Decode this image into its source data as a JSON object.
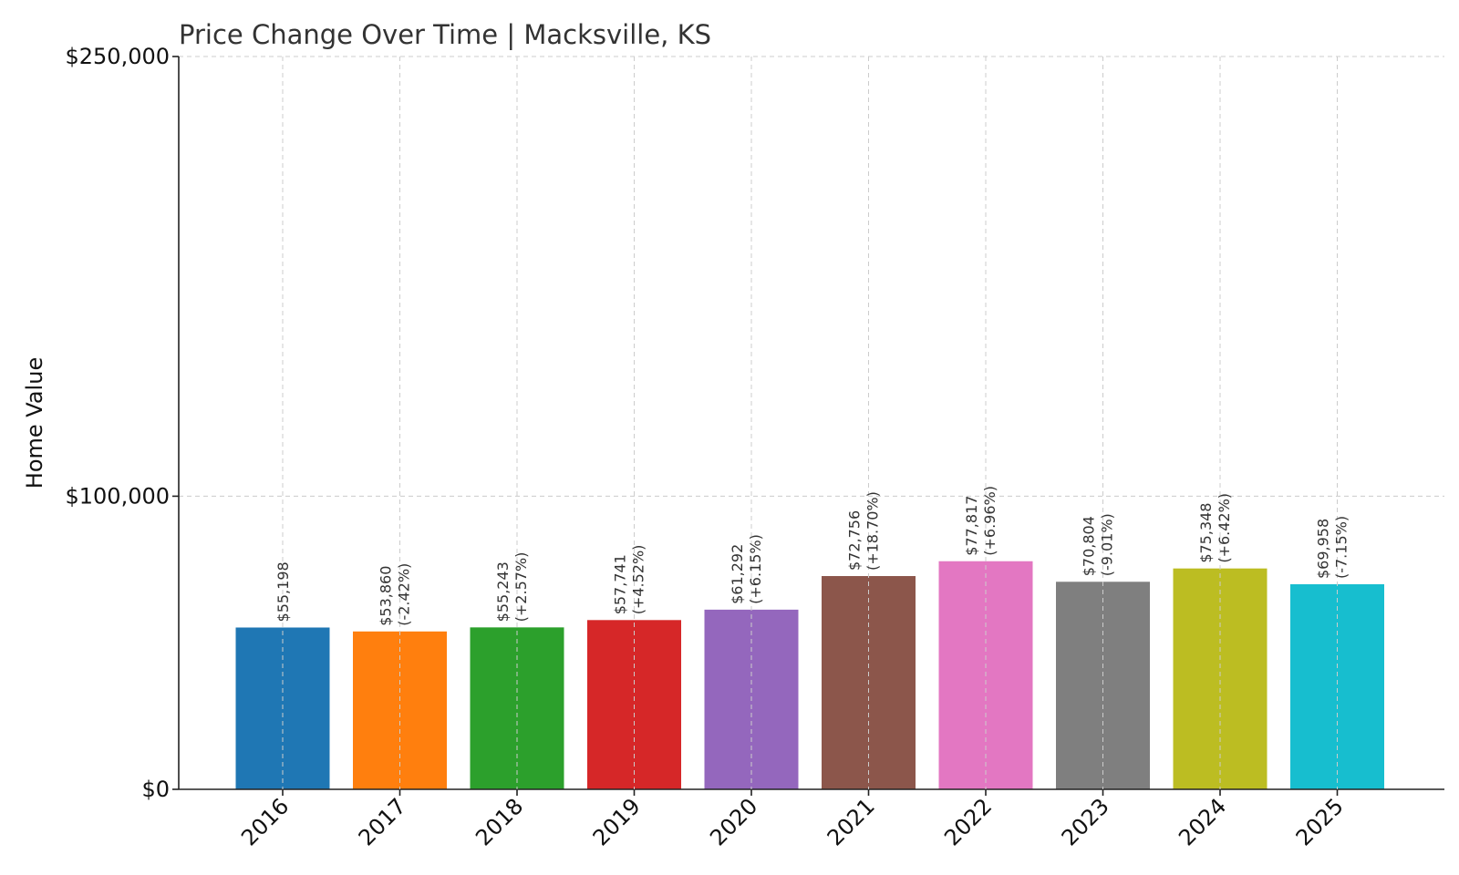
{
  "chart_data": {
    "type": "bar",
    "title": "Price Change Over Time | Macksville, KS",
    "xlabel": "",
    "ylabel": "Home Value",
    "ylim": [
      0,
      250000
    ],
    "yticks": [
      0,
      100000,
      250000
    ],
    "ytick_labels": [
      "$0",
      "$100,000",
      "$250,000"
    ],
    "grid": true,
    "categories": [
      "2016",
      "2017",
      "2018",
      "2019",
      "2020",
      "2021",
      "2022",
      "2023",
      "2024",
      "2025"
    ],
    "values": [
      55198,
      53860,
      55243,
      57741,
      61292,
      72756,
      77817,
      70804,
      75348,
      69958
    ],
    "value_labels": [
      "$55,198",
      "$53,860",
      "$55,243",
      "$57,741",
      "$61,292",
      "$72,756",
      "$77,817",
      "$70,804",
      "$75,348",
      "$69,958"
    ],
    "change_labels": [
      "",
      "(-2.42%)",
      "(+2.57%)",
      "(+4.52%)",
      "(+6.15%)",
      "(+18.70%)",
      "(+6.96%)",
      "(-9.01%)",
      "(+6.42%)",
      "(-7.15%)"
    ],
    "colors": [
      "#1f77b4",
      "#ff7f0e",
      "#2ca02c",
      "#d62728",
      "#9467bd",
      "#8c564b",
      "#e377c2",
      "#7f7f7f",
      "#bcbd22",
      "#17becf"
    ]
  }
}
